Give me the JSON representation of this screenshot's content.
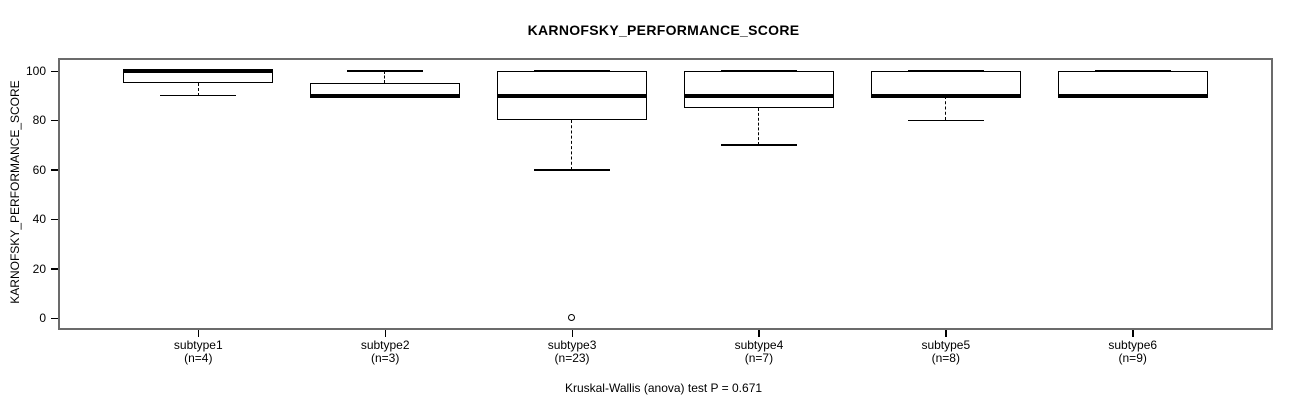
{
  "page": {
    "background": "#ffffff"
  },
  "chart_data": {
    "type": "boxplot",
    "title": "KARNOFSKY_PERFORMANCE_SCORE",
    "ylabel": "KARNOFSKY_PERFORMANCE_SCORE",
    "xlabel": "",
    "caption": "Kruskal-Wallis (anova) test P = 0.671",
    "test": {
      "name": "Kruskal-Wallis (anova) test",
      "p_value": 0.671
    },
    "ylim": [
      0,
      100
    ],
    "yticks": [
      0,
      20,
      40,
      60,
      80,
      100
    ],
    "grid": false,
    "legend": null,
    "categories": [
      "subtype1",
      "subtype2",
      "subtype3",
      "subtype4",
      "subtype5",
      "subtype6"
    ],
    "sample_sizes": [
      4,
      3,
      23,
      7,
      8,
      9
    ],
    "groups": [
      {
        "label": "subtype1",
        "n_label": "(n=4)",
        "n": 4,
        "min": 90,
        "q1": 95,
        "median": 100,
        "q3": 100,
        "max": 100,
        "outliers": []
      },
      {
        "label": "subtype2",
        "n_label": "(n=3)",
        "n": 3,
        "min": 90,
        "q1": 90,
        "median": 90,
        "q3": 95,
        "max": 100,
        "outliers": []
      },
      {
        "label": "subtype3",
        "n_label": "(n=23)",
        "n": 23,
        "min": 60,
        "q1": 80,
        "median": 90,
        "q3": 100,
        "max": 100,
        "outliers": [
          0
        ]
      },
      {
        "label": "subtype4",
        "n_label": "(n=7)",
        "n": 7,
        "min": 70,
        "q1": 85,
        "median": 90,
        "q3": 100,
        "max": 100,
        "outliers": []
      },
      {
        "label": "subtype5",
        "n_label": "(n=8)",
        "n": 8,
        "min": 80,
        "q1": 90,
        "median": 90,
        "q3": 100,
        "max": 100,
        "outliers": []
      },
      {
        "label": "subtype6",
        "n_label": "(n=9)",
        "n": 9,
        "min": 90,
        "q1": 90,
        "median": 90,
        "q3": 100,
        "max": 100,
        "outliers": []
      }
    ],
    "colors": {
      "box_fill": "#ffffff",
      "line": "#000000",
      "frame": "#6b6b6b",
      "background": "#ffffff"
    }
  }
}
